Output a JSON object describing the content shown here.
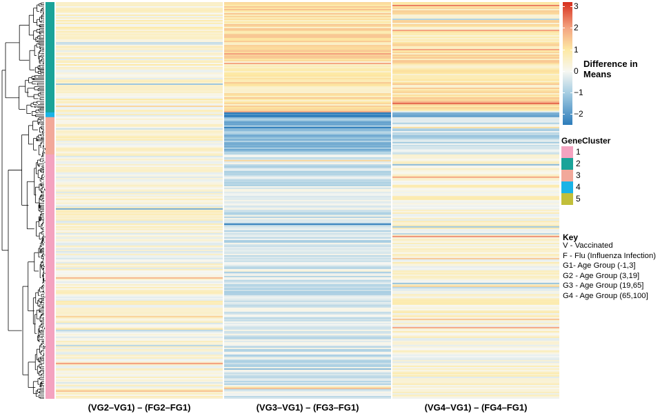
{
  "chart_data": {
    "type": "heatmap",
    "columns": [
      "(VG2–VG1) – (FG2–FG1)",
      "(VG3–VG1) – (FG3–FG1)",
      "(VG4–VG1) – (FG4–FG1)"
    ],
    "color_scale": {
      "title": "Difference in Means",
      "range": [
        -2.5,
        3.2
      ],
      "ticks": [
        "3",
        "2",
        "1",
        "0",
        "−1",
        "−2"
      ],
      "tick_values": [
        3,
        2,
        1,
        0,
        -1,
        -2
      ],
      "stops": [
        {
          "value": 3.2,
          "color": "#d7301f"
        },
        {
          "value": 2.0,
          "color": "#f4a582"
        },
        {
          "value": 1.0,
          "color": "#fde9a4"
        },
        {
          "value": 0.0,
          "color": "#f7f7f2"
        },
        {
          "value": -1.0,
          "color": "#a6cde2"
        },
        {
          "value": -2.5,
          "color": "#2b7bba"
        }
      ]
    },
    "gene_cluster_legend": {
      "title": "GeneCluster",
      "items": [
        {
          "label": "1",
          "color": "#f4a3c0"
        },
        {
          "label": "2",
          "color": "#1aa399"
        },
        {
          "label": "3",
          "color": "#f2a89a"
        },
        {
          "label": "4",
          "color": "#1ab3e6"
        },
        {
          "label": "5",
          "color": "#c2bf3a"
        }
      ]
    },
    "row_clusters": [
      {
        "cluster": "2",
        "fraction": 0.278
      },
      {
        "cluster": "4",
        "fraction": 0.012
      },
      {
        "cluster": "3",
        "fraction": 0.094
      },
      {
        "cluster": "1",
        "fraction": 0.616
      }
    ],
    "cluster_blocks": [
      {
        "cluster": "2",
        "col_means": [
          0.35,
          1.0,
          0.9
        ]
      },
      {
        "cluster": "4",
        "col_means": [
          0.2,
          -2.0,
          -1.8
        ]
      },
      {
        "cluster": "3",
        "col_means": [
          0.35,
          -1.3,
          -0.6
        ]
      },
      {
        "cluster": "1",
        "col_means": [
          0.2,
          -0.4,
          0.3
        ]
      }
    ],
    "key": {
      "title": "Key",
      "lines": [
        "V - Vaccinated",
        "F - Flu (Influenza Infection)",
        "G1- Age Group (-1,3]",
        "G2 - Age Group (3,19]",
        "G3 - Age Group (19,65]",
        "G4 - Age Group (65,100]"
      ]
    }
  }
}
